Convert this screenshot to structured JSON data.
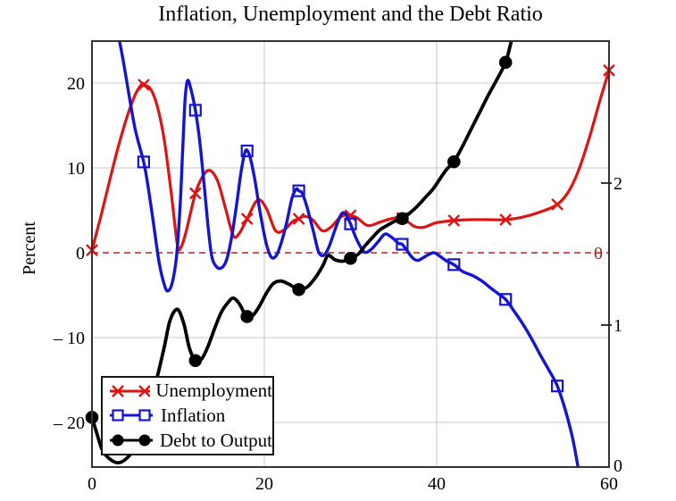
{
  "chart_data": {
    "type": "line",
    "title": "Inflation, Unemployment and the Debt Ratio",
    "x_axis": {
      "range": [
        0,
        60
      ],
      "ticks": [
        0,
        20,
        40,
        60
      ]
    },
    "left_axis": {
      "label": "Percent",
      "range": [
        -25.26,
        24.95
      ],
      "ticks": [
        {
          "v": 20,
          "label": "20"
        },
        {
          "v": 10,
          "label": "10"
        },
        {
          "v": 0,
          "label": "0"
        },
        {
          "v": -10,
          "label": "– 10"
        },
        {
          "v": -20,
          "label": "– 20"
        }
      ]
    },
    "right_axis": {
      "range": [
        0,
        3
      ],
      "ticks": [
        {
          "v": 2,
          "label": "2"
        },
        {
          "v": 1,
          "label": "1"
        },
        {
          "v": 0,
          "label": "0"
        }
      ]
    },
    "zero_line": {
      "axis": "left",
      "value": 0,
      "label": "0",
      "style": "dashed"
    },
    "grid": true,
    "legend_position": "bottom-left",
    "series": [
      {
        "name": "Unemployment",
        "axis": "left",
        "marker": "x",
        "color": "#e01212",
        "points": [
          [
            0,
            0.3
          ],
          [
            1,
            4.2
          ],
          [
            2,
            8.3
          ],
          [
            3,
            12.3
          ],
          [
            4,
            15.8
          ],
          [
            5,
            18.6
          ],
          [
            5.8,
            19.9
          ],
          [
            6,
            19.8
          ],
          [
            6.8,
            19.3
          ],
          [
            7.6,
            17.2
          ],
          [
            8.4,
            13.2
          ],
          [
            9.2,
            7.0
          ],
          [
            9.9,
            1.0
          ],
          [
            10.3,
            0.6
          ],
          [
            10.9,
            2.4
          ],
          [
            12,
            7.0
          ],
          [
            12.9,
            9.1
          ],
          [
            13.7,
            9.7
          ],
          [
            14.6,
            8.4
          ],
          [
            15.5,
            5.2
          ],
          [
            16.4,
            2.0
          ],
          [
            17.1,
            2.3
          ],
          [
            18,
            4.0
          ],
          [
            19.2,
            6.2
          ],
          [
            20.2,
            5.3
          ],
          [
            21.3,
            2.6
          ],
          [
            22.3,
            2.7
          ],
          [
            23.3,
            3.7
          ],
          [
            24,
            4.0
          ],
          [
            24.6,
            4.3
          ],
          [
            25.6,
            3.9
          ],
          [
            26.7,
            2.6
          ],
          [
            27.7,
            3.0
          ],
          [
            28.7,
            4.1
          ],
          [
            29.5,
            4.5
          ],
          [
            30,
            4.4
          ],
          [
            30.8,
            4.1
          ],
          [
            32,
            3.2
          ],
          [
            33.4,
            3.6
          ],
          [
            34.7,
            4.0
          ],
          [
            36,
            4.1
          ],
          [
            37.4,
            3.1
          ],
          [
            38.5,
            3.0
          ],
          [
            39.8,
            3.5
          ],
          [
            41,
            3.7
          ],
          [
            42,
            3.8
          ],
          [
            44,
            3.9
          ],
          [
            46,
            3.9
          ],
          [
            48,
            3.9
          ],
          [
            50,
            4.2
          ],
          [
            52,
            4.8
          ],
          [
            54,
            5.7
          ],
          [
            55.3,
            7.2
          ],
          [
            56.5,
            9.8
          ],
          [
            57.7,
            13.5
          ],
          [
            58.9,
            17.8
          ],
          [
            60,
            21.5
          ]
        ],
        "marker_points": [
          [
            0,
            0.3
          ],
          [
            6,
            19.8
          ],
          [
            12,
            7.0
          ],
          [
            18,
            4.0
          ],
          [
            24,
            4.0
          ],
          [
            30,
            4.4
          ],
          [
            36,
            4.1
          ],
          [
            42,
            3.8
          ],
          [
            48,
            3.9
          ],
          [
            54,
            5.7
          ],
          [
            60,
            21.5
          ]
        ]
      },
      {
        "name": "Inflation",
        "axis": "left",
        "marker": "square",
        "color": "#1414d4",
        "points": [
          [
            3.0,
            26
          ],
          [
            3.6,
            22.8
          ],
          [
            4.2,
            19.2
          ],
          [
            5,
            14.6
          ],
          [
            6,
            10.7
          ],
          [
            6.6,
            7.2
          ],
          [
            7.2,
            3.0
          ],
          [
            7.8,
            -1.2
          ],
          [
            8.4,
            -3.8
          ],
          [
            8.8,
            -4.5
          ],
          [
            9.3,
            -3.6
          ],
          [
            9.8,
            -0.5
          ],
          [
            10.2,
            5.0
          ],
          [
            10.5,
            11.5
          ],
          [
            10.8,
            18.0
          ],
          [
            11.1,
            20.3
          ],
          [
            11.5,
            19.2
          ],
          [
            12,
            16.8
          ],
          [
            12.5,
            13.2
          ],
          [
            13,
            8.2
          ],
          [
            13.5,
            2.8
          ],
          [
            13.9,
            -0.4
          ],
          [
            14.4,
            -1.6
          ],
          [
            15,
            -1.8
          ],
          [
            15.6,
            -0.9
          ],
          [
            16.2,
            1.8
          ],
          [
            16.8,
            5.8
          ],
          [
            17.3,
            9.5
          ],
          [
            17.8,
            12.0
          ],
          [
            18.3,
            11.4
          ],
          [
            18.9,
            8.6
          ],
          [
            19.5,
            4.8
          ],
          [
            20.2,
            1.2
          ],
          [
            20.8,
            -0.5
          ],
          [
            21.4,
            -0.3
          ],
          [
            22,
            1.3
          ],
          [
            22.6,
            3.6
          ],
          [
            23.2,
            6.4
          ],
          [
            23.7,
            7.5
          ],
          [
            24,
            7.3
          ],
          [
            24.4,
            7.0
          ],
          [
            25,
            5.2
          ],
          [
            25.7,
            2.5
          ],
          [
            26.3,
            0.1
          ],
          [
            26.9,
            -0.3
          ],
          [
            27.5,
            0.7
          ],
          [
            28.2,
            2.7
          ],
          [
            28.9,
            4.5
          ],
          [
            29.4,
            4.6
          ],
          [
            30,
            3.4
          ],
          [
            30.7,
            1.6
          ],
          [
            31.6,
            0.1
          ],
          [
            32.4,
            0.4
          ],
          [
            33.2,
            1.3
          ],
          [
            34,
            2.2
          ],
          [
            34.8,
            1.8
          ],
          [
            35.6,
            1.1
          ],
          [
            36,
            1.0
          ],
          [
            36.6,
            0.2
          ],
          [
            37.2,
            -0.6
          ],
          [
            37.8,
            -0.9
          ],
          [
            38.4,
            -0.6
          ],
          [
            39.1,
            -0.2
          ],
          [
            39.7,
            0.0
          ],
          [
            40.5,
            -0.5
          ],
          [
            41.2,
            -1.0
          ],
          [
            42,
            -1.4
          ],
          [
            43,
            -2.2
          ],
          [
            44.2,
            -2.7
          ],
          [
            45.2,
            -3.3
          ],
          [
            46.2,
            -4.1
          ],
          [
            47.1,
            -4.8
          ],
          [
            48,
            -5.5
          ],
          [
            49,
            -6.9
          ],
          [
            50,
            -8.4
          ],
          [
            51,
            -10.1
          ],
          [
            52,
            -12.0
          ],
          [
            53,
            -13.8
          ],
          [
            54,
            -15.7
          ],
          [
            55,
            -18.8
          ],
          [
            55.8,
            -22.0
          ],
          [
            56.5,
            -25.8
          ]
        ],
        "marker_points": [
          [
            6,
            10.7
          ],
          [
            12,
            16.8
          ],
          [
            18,
            12.0
          ],
          [
            24,
            7.3
          ],
          [
            30,
            3.4
          ],
          [
            36,
            1.0
          ],
          [
            42,
            -1.4
          ],
          [
            48,
            -5.5
          ],
          [
            54,
            -15.7
          ]
        ]
      },
      {
        "name": "Debt to Output",
        "axis": "right",
        "marker": "circle",
        "color": "#000000",
        "points": [
          [
            0,
            0.35
          ],
          [
            0.6,
            0.23
          ],
          [
            1.2,
            0.12
          ],
          [
            2,
            0.06
          ],
          [
            3,
            0.03
          ],
          [
            4,
            0.06
          ],
          [
            5,
            0.14
          ],
          [
            6,
            0.29
          ],
          [
            6.8,
            0.47
          ],
          [
            7.6,
            0.64
          ],
          [
            8.4,
            0.85
          ],
          [
            9,
            1.02
          ],
          [
            9.6,
            1.1
          ],
          [
            10.1,
            1.1
          ],
          [
            10.7,
            1.0
          ],
          [
            11.3,
            0.84
          ],
          [
            12,
            0.75
          ],
          [
            12.7,
            0.76
          ],
          [
            13.4,
            0.84
          ],
          [
            14.2,
            0.97
          ],
          [
            15,
            1.09
          ],
          [
            15.8,
            1.16
          ],
          [
            16.4,
            1.19
          ],
          [
            17.1,
            1.15
          ],
          [
            17.7,
            1.08
          ],
          [
            18,
            1.06
          ],
          [
            18.7,
            1.07
          ],
          [
            19.4,
            1.13
          ],
          [
            20.2,
            1.22
          ],
          [
            21,
            1.29
          ],
          [
            21.9,
            1.31
          ],
          [
            22.8,
            1.29
          ],
          [
            24,
            1.25
          ],
          [
            25,
            1.27
          ],
          [
            26,
            1.34
          ],
          [
            26.8,
            1.42
          ],
          [
            27.4,
            1.49
          ],
          [
            28.2,
            1.46
          ],
          [
            29.1,
            1.45
          ],
          [
            30,
            1.47
          ],
          [
            30.9,
            1.5
          ],
          [
            31.7,
            1.56
          ],
          [
            32.6,
            1.62
          ],
          [
            33.4,
            1.67
          ],
          [
            34.2,
            1.7
          ],
          [
            35.1,
            1.73
          ],
          [
            36,
            1.75
          ],
          [
            36.9,
            1.79
          ],
          [
            37.8,
            1.84
          ],
          [
            38.7,
            1.9
          ],
          [
            39.6,
            1.96
          ],
          [
            40.5,
            2.04
          ],
          [
            41.2,
            2.1
          ],
          [
            42,
            2.15
          ],
          [
            43,
            2.26
          ],
          [
            44,
            2.38
          ],
          [
            45,
            2.5
          ],
          [
            46,
            2.62
          ],
          [
            47,
            2.73
          ],
          [
            48,
            2.85
          ],
          [
            48.5,
            2.96
          ],
          [
            48.9,
            3.06
          ]
        ],
        "marker_points": [
          [
            0,
            0.35
          ],
          [
            6,
            0.29
          ],
          [
            12,
            0.75
          ],
          [
            18,
            1.06
          ],
          [
            24,
            1.25
          ],
          [
            30,
            1.47
          ],
          [
            36,
            1.75
          ],
          [
            42,
            2.15
          ],
          [
            48,
            2.85
          ]
        ]
      }
    ]
  },
  "colors": {
    "unemployment": "#e01212",
    "inflation": "#1414d4",
    "debt": "#000000",
    "grid": "#c9c9c9",
    "frame": "#333333",
    "dashed_zero": "#c03030",
    "zero_marker_label": "#9e2222",
    "text": "#000000",
    "background": "#ffffff"
  }
}
